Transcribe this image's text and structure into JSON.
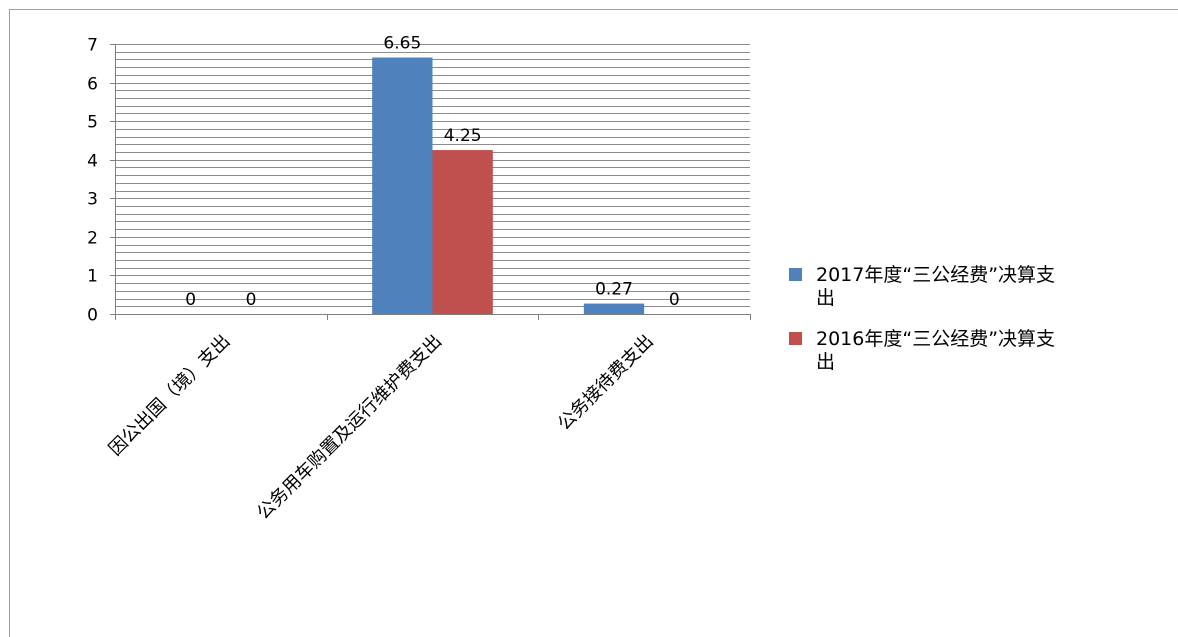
{
  "chart_data": {
    "type": "bar",
    "categories": [
      "因公出国（境）支出",
      "公务用车购置及运行维护费支出",
      "公务接待费支出"
    ],
    "series": [
      {
        "name": "2017年度“三公经费”决算支出",
        "legend_lines": [
          "2017年度“三公经费”决算支",
          "出"
        ],
        "values": [
          0,
          6.65,
          0.27
        ],
        "labels": [
          "0",
          "6.65",
          "0.27"
        ],
        "color": "#4f81bd"
      },
      {
        "name": "2016年度“三公经费”决算支出",
        "legend_lines": [
          "2016年度“三公经费”决算支",
          "出"
        ],
        "values": [
          0,
          4.25,
          0
        ],
        "labels": [
          "0",
          "4.25",
          "0"
        ],
        "color": "#c0504d"
      }
    ],
    "yticks": [
      "0",
      "1",
      "2",
      "3",
      "4",
      "5",
      "6",
      "7"
    ],
    "ylim": [
      0,
      7
    ],
    "minor_grid_step": 0.2,
    "title": "",
    "xlabel": "",
    "ylabel": "",
    "grid": true,
    "legend_position": "right"
  }
}
